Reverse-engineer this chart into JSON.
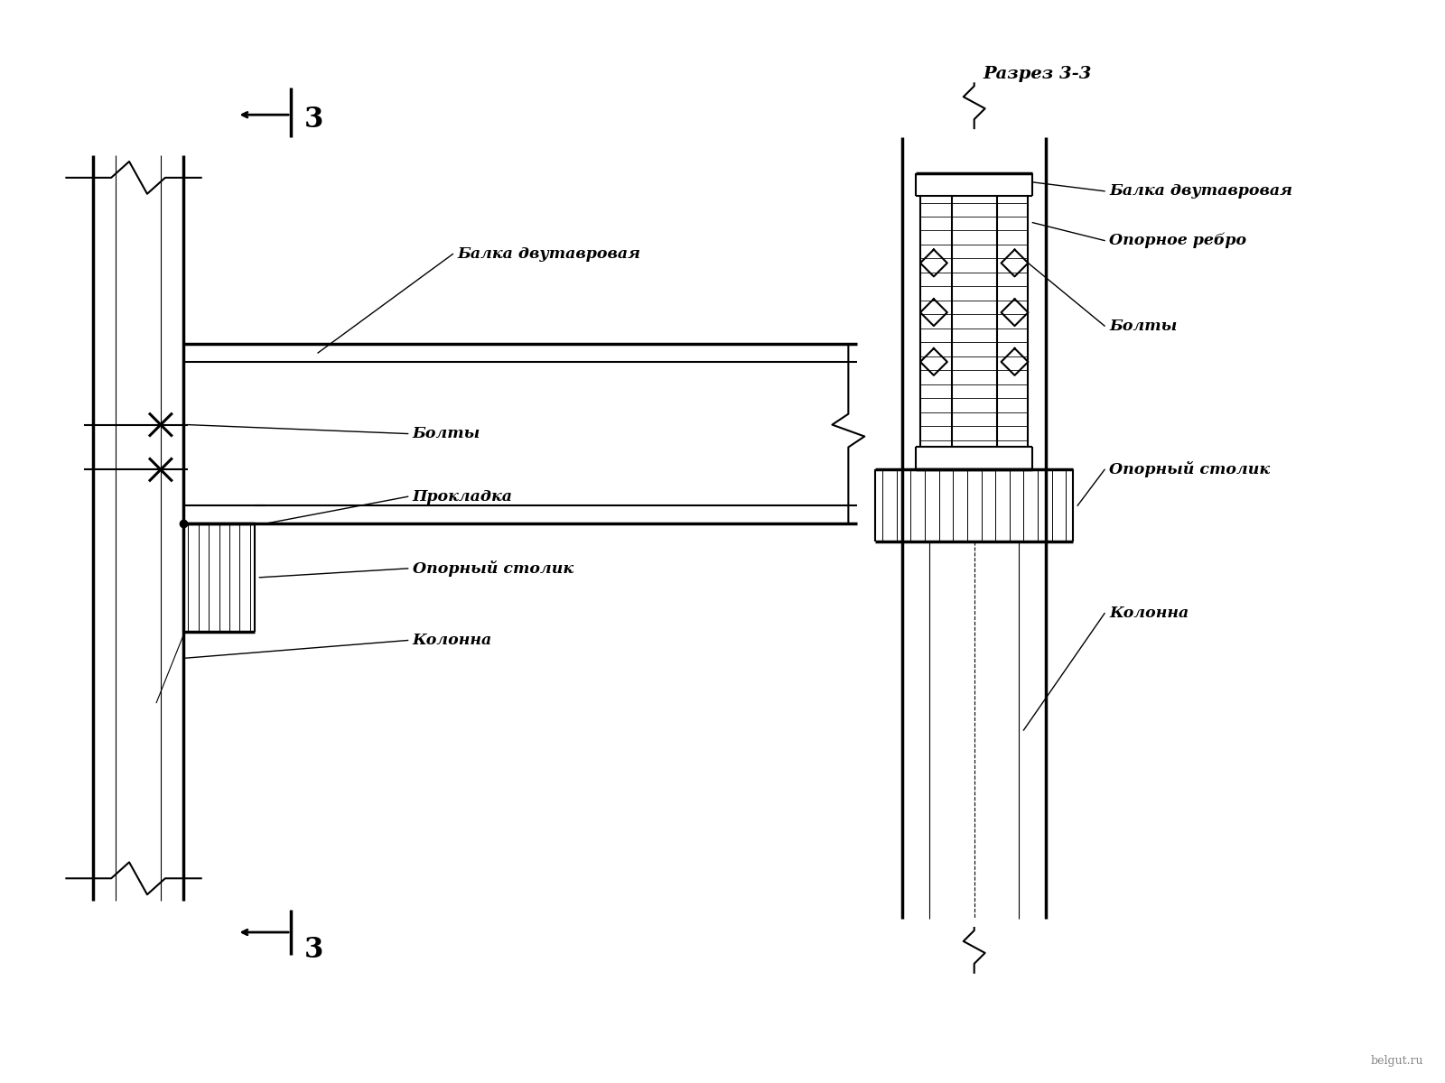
{
  "bg_color": "#ffffff",
  "section_title": "Разрез 3-3",
  "section_num": "3",
  "label_balka": "Балка двутавровая",
  "label_opornoe_rebro": "Опорное ребро",
  "label_bolty": "Болты",
  "label_prokladka": "Прокладка",
  "label_oporny_stolik": "Опорный столик",
  "label_kolonna": "Колонна",
  "watermark": "belgut.ru",
  "lw_thin": 0.8,
  "lw_med": 1.5,
  "lw_thick": 2.5
}
